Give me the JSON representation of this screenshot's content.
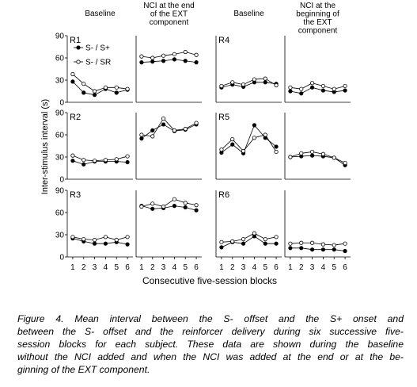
{
  "figure": {
    "y_label": "Inter-stimulus interval (s)",
    "x_label": "Consecutive five-session blocks",
    "caption_lines": [
      "Figure 4. Mean interval between the S- offset and the S+ onset and",
      "between the S- offset and the reinforcer delivery during six successive five-",
      "session blocks for each subject. These data are shown during the baseline",
      "without the NCI added and when the NCI was added at the end or at the be-",
      "ginning of the EXT component."
    ]
  },
  "chart_data": [
    {
      "type": "line",
      "title": [
        "Baseline"
      ],
      "label": "R1",
      "x": [
        1,
        2,
        3,
        4,
        5,
        6
      ],
      "xlim": [
        0.5,
        6.5
      ],
      "ylim": [
        0,
        90
      ],
      "yticks": [
        0,
        30,
        60,
        90
      ],
      "series": [
        {
          "name": "S- / S+",
          "color": "#000000",
          "marker_fill": "#000000",
          "values": [
            28,
            13,
            10,
            18,
            13,
            17
          ]
        },
        {
          "name": "S- / SR",
          "color": "#000000",
          "marker_fill": "#ffffff",
          "values": [
            38,
            25,
            15,
            20,
            20,
            18
          ]
        }
      ]
    },
    {
      "type": "line",
      "title": [
        "NCI at the end",
        "of the EXT",
        "component"
      ],
      "x": [
        1,
        2,
        3,
        4,
        5,
        6
      ],
      "xlim": [
        0.5,
        6.5
      ],
      "ylim": [
        0,
        90
      ],
      "series": [
        {
          "color": "#000000",
          "marker_fill": "#000000",
          "values": [
            54,
            55,
            56,
            58,
            56,
            54
          ]
        },
        {
          "color": "#000000",
          "marker_fill": "#ffffff",
          "values": [
            62,
            60,
            63,
            65,
            68,
            64
          ]
        }
      ]
    },
    {
      "type": "line",
      "title": [
        "Baseline"
      ],
      "label": "R4",
      "x": [
        1,
        2,
        3,
        4,
        5,
        6
      ],
      "xlim": [
        0.5,
        6.5
      ],
      "ylim": [
        0,
        90
      ],
      "series": [
        {
          "color": "#000000",
          "marker_fill": "#000000",
          "values": [
            20,
            24,
            21,
            27,
            27,
            25
          ]
        },
        {
          "color": "#000000",
          "marker_fill": "#ffffff",
          "values": [
            22,
            27,
            24,
            31,
            32,
            23
          ]
        }
      ]
    },
    {
      "type": "line",
      "title": [
        "NCI at the",
        "beginning of",
        "the EXT",
        "component"
      ],
      "x": [
        1,
        2,
        3,
        4,
        5,
        6
      ],
      "xlim": [
        0.5,
        6.5
      ],
      "ylim": [
        0,
        90
      ],
      "series": [
        {
          "color": "#000000",
          "marker_fill": "#000000",
          "values": [
            15,
            12,
            20,
            16,
            14,
            16
          ]
        },
        {
          "color": "#000000",
          "marker_fill": "#ffffff",
          "values": [
            20,
            18,
            26,
            22,
            18,
            22
          ]
        }
      ]
    },
    {
      "type": "line",
      "label": "R2",
      "x": [
        1,
        2,
        3,
        4,
        5,
        6
      ],
      "xlim": [
        0.5,
        6.5
      ],
      "ylim": [
        0,
        90
      ],
      "yticks": [
        0,
        30,
        60,
        90
      ],
      "series": [
        {
          "color": "#000000",
          "marker_fill": "#000000",
          "values": [
            25,
            20,
            24,
            24,
            24,
            23
          ]
        },
        {
          "color": "#000000",
          "marker_fill": "#ffffff",
          "values": [
            32,
            26,
            25,
            26,
            27,
            31
          ]
        }
      ]
    },
    {
      "type": "line",
      "x": [
        1,
        2,
        3,
        4,
        5,
        6
      ],
      "xlim": [
        0.5,
        6.5
      ],
      "ylim": [
        0,
        90
      ],
      "series": [
        {
          "color": "#000000",
          "marker_fill": "#000000",
          "values": [
            55,
            66,
            74,
            65,
            67,
            74
          ]
        },
        {
          "color": "#000000",
          "marker_fill": "#ffffff",
          "values": [
            60,
            58,
            82,
            66,
            68,
            76
          ]
        }
      ]
    },
    {
      "type": "line",
      "label": "R5",
      "x": [
        1,
        2,
        3,
        4,
        5,
        6
      ],
      "xlim": [
        0.5,
        6.5
      ],
      "ylim": [
        0,
        90
      ],
      "series": [
        {
          "color": "#000000",
          "marker_fill": "#000000",
          "values": [
            36,
            47,
            35,
            73,
            56,
            44
          ]
        },
        {
          "color": "#000000",
          "marker_fill": "#ffffff",
          "values": [
            40,
            54,
            38,
            56,
            60,
            37
          ]
        }
      ]
    },
    {
      "type": "line",
      "x": [
        1,
        2,
        3,
        4,
        5,
        6
      ],
      "xlim": [
        0.5,
        6.5
      ],
      "ylim": [
        0,
        90
      ],
      "series": [
        {
          "color": "#000000",
          "marker_fill": "#000000",
          "values": [
            30,
            31,
            32,
            31,
            29,
            19
          ]
        },
        {
          "color": "#000000",
          "marker_fill": "#ffffff",
          "values": [
            30,
            35,
            37,
            34,
            29,
            22
          ]
        }
      ]
    },
    {
      "type": "line",
      "label": "R3",
      "x": [
        1,
        2,
        3,
        4,
        5,
        6
      ],
      "xlim": [
        0.5,
        6.5
      ],
      "ylim": [
        0,
        90
      ],
      "yticks": [
        0,
        30,
        60,
        90
      ],
      "xticks": [
        1,
        2,
        3,
        4,
        5,
        6
      ],
      "series": [
        {
          "color": "#000000",
          "marker_fill": "#000000",
          "values": [
            25,
            21,
            18,
            18,
            20,
            17
          ]
        },
        {
          "color": "#000000",
          "marker_fill": "#ffffff",
          "values": [
            27,
            24,
            23,
            27,
            23,
            27
          ]
        }
      ]
    },
    {
      "type": "line",
      "x": [
        1,
        2,
        3,
        4,
        5,
        6
      ],
      "xlim": [
        0.5,
        6.5
      ],
      "ylim": [
        0,
        90
      ],
      "xticks": [
        1,
        2,
        3,
        4,
        5,
        6
      ],
      "series": [
        {
          "color": "#000000",
          "marker_fill": "#000000",
          "values": [
            69,
            65,
            66,
            69,
            67,
            63
          ]
        },
        {
          "color": "#000000",
          "marker_fill": "#ffffff",
          "values": [
            68,
            72,
            68,
            78,
            73,
            70
          ]
        }
      ]
    },
    {
      "type": "line",
      "label": "R6",
      "x": [
        1,
        2,
        3,
        4,
        5,
        6
      ],
      "xlim": [
        0.5,
        6.5
      ],
      "ylim": [
        0,
        90
      ],
      "xticks": [
        1,
        2,
        3,
        4,
        5,
        6
      ],
      "series": [
        {
          "color": "#000000",
          "marker_fill": "#000000",
          "values": [
            13,
            20,
            18,
            28,
            18,
            18
          ]
        },
        {
          "color": "#000000",
          "marker_fill": "#ffffff",
          "values": [
            20,
            21,
            24,
            32,
            24,
            27
          ]
        }
      ]
    },
    {
      "type": "line",
      "x": [
        1,
        2,
        3,
        4,
        5,
        6
      ],
      "xlim": [
        0.5,
        6.5
      ],
      "ylim": [
        0,
        90
      ],
      "xticks": [
        1,
        2,
        3,
        4,
        5,
        6
      ],
      "series": [
        {
          "color": "#000000",
          "marker_fill": "#000000",
          "values": [
            12,
            12,
            10,
            10,
            10,
            8
          ]
        },
        {
          "color": "#000000",
          "marker_fill": "#ffffff",
          "values": [
            18,
            19,
            19,
            17,
            16,
            18
          ]
        }
      ]
    }
  ]
}
